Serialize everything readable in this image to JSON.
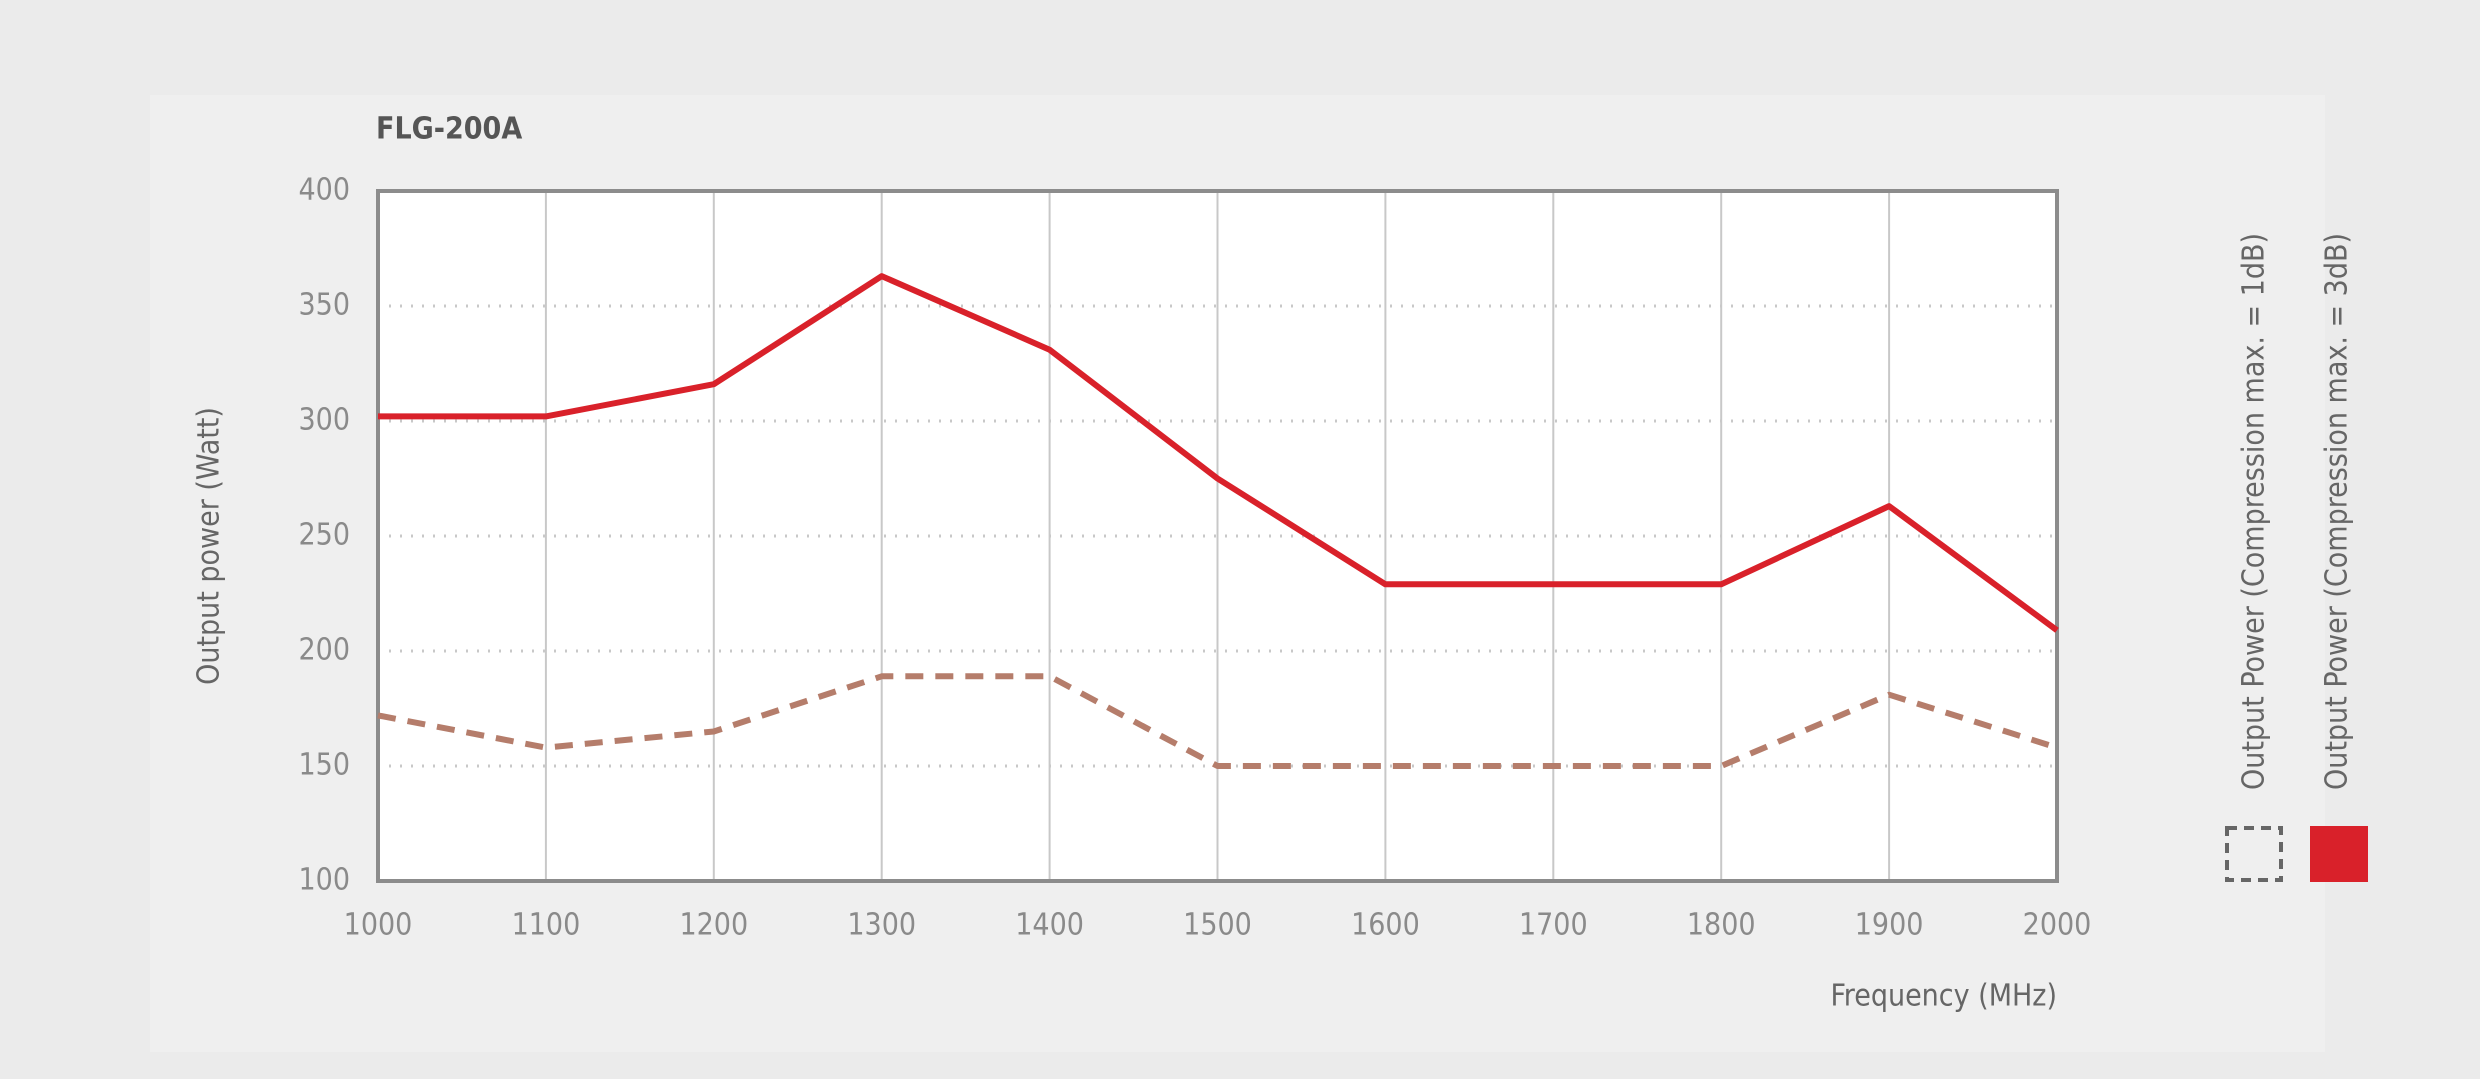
{
  "chart_data": {
    "type": "line",
    "title": "FLG-200A",
    "x_label": "Frequency (MHz)",
    "y_label": "Output power (Watt)",
    "x": [
      1000,
      1100,
      1200,
      1300,
      1400,
      1500,
      1600,
      1700,
      1800,
      1900,
      2000
    ],
    "series": [
      {
        "name": "Output Power (Compression max. = 1dB)",
        "color": "#b57d6b",
        "dashed": true,
        "values": [
          172,
          158,
          165,
          189,
          189,
          150,
          150,
          150,
          150,
          181,
          158
        ]
      },
      {
        "name": "Output Power (Compression max. = 3dB)",
        "color": "#d9212a",
        "dashed": false,
        "values": [
          302,
          302,
          316,
          363,
          331,
          275,
          229,
          229,
          229,
          263,
          209
        ]
      }
    ],
    "xlim": [
      1000,
      2000
    ],
    "xticks": [
      1000,
      1100,
      1200,
      1300,
      1400,
      1500,
      1600,
      1700,
      1800,
      1900,
      2000
    ],
    "ylim": [
      100,
      400
    ],
    "yticks": [
      100,
      150,
      200,
      250,
      300,
      350,
      400
    ],
    "grid": true,
    "legend": "right"
  }
}
